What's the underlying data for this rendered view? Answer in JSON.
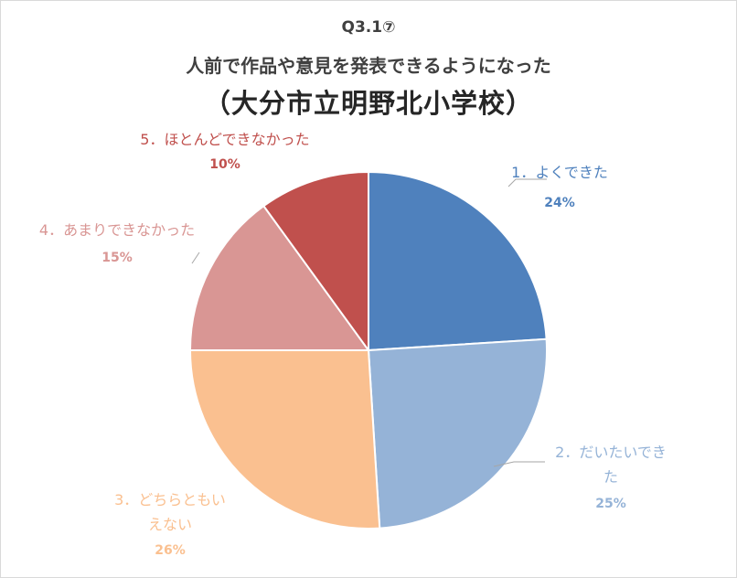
{
  "title": {
    "line1": "Q3.1⑦",
    "line2": "人前で作品や意見を発表できるようになった",
    "line3": "（大分市立明野北小学校）"
  },
  "chart_data": {
    "type": "pie",
    "title": "Q3.1⑦ 人前で作品や意見を発表できるようになった （大分市立明野北小学校）",
    "start": "12 o'clock, clockwise",
    "slices": [
      {
        "label": "1．よくできた",
        "value": 24,
        "percent_label": "24%",
        "color": "#4f81bd"
      },
      {
        "label": "2．だいたいできた",
        "value": 25,
        "percent_label": "25%",
        "color": "#95b3d7"
      },
      {
        "label": "3．どちらともいえない",
        "value": 26,
        "percent_label": "26%",
        "color": "#fac090"
      },
      {
        "label": "4．あまりできなかった",
        "value": 15,
        "percent_label": "15%",
        "color": "#d99694"
      },
      {
        "label": "5．ほとんどできなかった",
        "value": 10,
        "percent_label": "10%",
        "color": "#c0504d"
      }
    ],
    "label_text_colors": [
      "#4f81bd",
      "#95b3d7",
      "#fac090",
      "#d99694",
      "#c0504d"
    ]
  }
}
